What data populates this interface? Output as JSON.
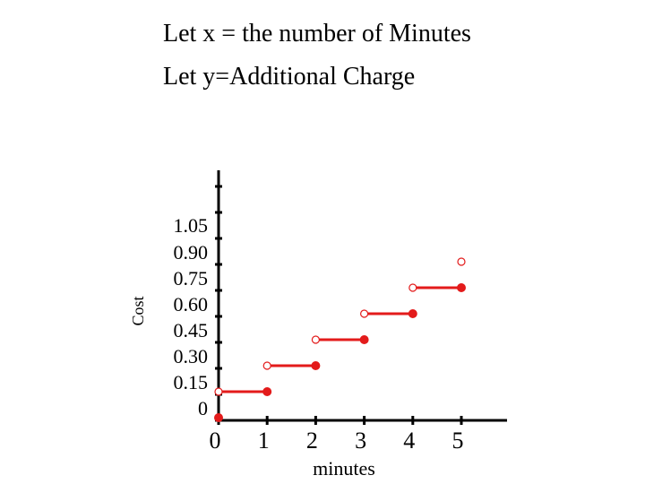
{
  "chart_data": {
    "type": "step",
    "title_lines": [
      "Let x = the number of Minutes",
      "Let y=Additional Charge"
    ],
    "xlabel": "minutes",
    "ylabel": "Cost",
    "x_ticks": [
      "0",
      "1",
      "2",
      "3",
      "4",
      "5"
    ],
    "y_ticks": [
      "1.05",
      "0.90",
      "0.75",
      "0.60",
      "0.45",
      "0.30",
      "0.15",
      "0"
    ],
    "xlim": [
      0,
      5
    ],
    "ylim": [
      0,
      1.05
    ],
    "color": "#e31b1b",
    "steps": [
      {
        "x_start": 0,
        "x_end": 1,
        "y": 0.15,
        "open_start": true,
        "closed_end": true
      },
      {
        "x_start": 1,
        "x_end": 2,
        "y": 0.3,
        "open_start": true,
        "closed_end": true
      },
      {
        "x_start": 2,
        "x_end": 3,
        "y": 0.45,
        "open_start": true,
        "closed_end": true
      },
      {
        "x_start": 3,
        "x_end": 4,
        "y": 0.6,
        "open_start": true,
        "closed_end": true
      },
      {
        "x_start": 4,
        "x_end": 5,
        "y": 0.75,
        "open_start": true,
        "closed_end": true
      }
    ],
    "extra_points": [
      {
        "x": 0,
        "y": 0,
        "filled": true
      },
      {
        "x": 5,
        "y": 0.9,
        "filled": false
      }
    ]
  }
}
